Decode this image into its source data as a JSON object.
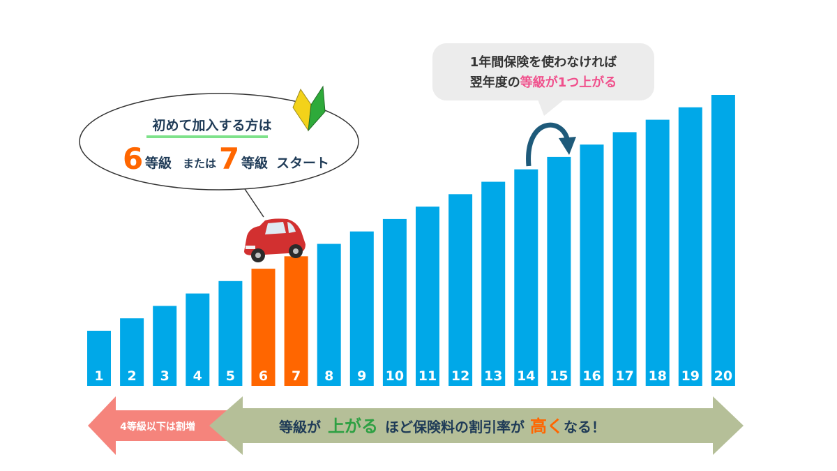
{
  "chart_data": {
    "type": "bar",
    "categories": [
      "1",
      "2",
      "3",
      "4",
      "5",
      "6",
      "7",
      "8",
      "9",
      "10",
      "11",
      "12",
      "13",
      "14",
      "15",
      "16",
      "17",
      "18",
      "19",
      "20"
    ],
    "values": [
      1,
      2,
      3,
      4,
      5,
      6,
      7,
      8,
      9,
      10,
      11,
      12,
      13,
      14,
      15,
      16,
      17,
      18,
      19,
      20
    ],
    "highlight_categories": [
      "6",
      "7"
    ],
    "bar_color": "#00a8e8",
    "highlight_color": "#ff6600"
  },
  "start_bubble": {
    "heading": "初めて加入する方は",
    "grade_a": "6",
    "grade_a_unit": "等級",
    "conj": "または",
    "grade_b": "7",
    "grade_b_unit": "等級",
    "tail": "スタート"
  },
  "info_bubble": {
    "line1": "1年間保険を使わなければ",
    "line2_pre": "翌年度の",
    "line2_accent": "等級が1つ上がる"
  },
  "left_arrow": {
    "label": "4等級以下は割増",
    "color": "#f5847c"
  },
  "right_arrow": {
    "pre": "等級が",
    "up": "上がる",
    "mid": "ほど保険料の割引率が",
    "high": "高く",
    "post": "なる！",
    "color": "#b5bf98"
  },
  "colors": {
    "orange": "#ff6600",
    "pink": "#f0508c",
    "green": "#2ea043",
    "navy": "#1f3b57",
    "curve": "#1e5a7a"
  }
}
